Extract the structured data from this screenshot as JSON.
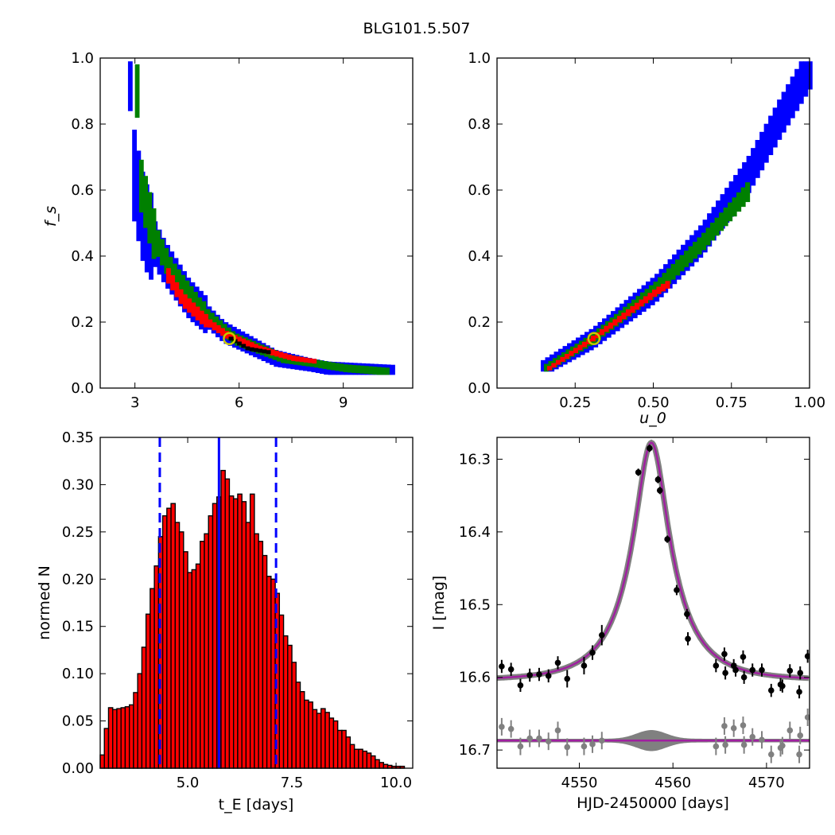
{
  "chart_data": [
    {
      "type": "scatter",
      "panel": "top-left",
      "title": "BLG101.5.507",
      "xlabel": "",
      "ylabel": "f_s",
      "xlim": [
        2,
        11
      ],
      "ylim": [
        0,
        1
      ],
      "xticks": [
        "3",
        "6",
        "9"
      ],
      "yticks": [
        "0.0",
        "0.2",
        "0.4",
        "0.6",
        "0.8",
        "1.0"
      ],
      "regions": [
        {
          "name": "outer",
          "color": "#0000ff",
          "curve": [
            [
              2.8,
              0.98
            ],
            [
              2.85,
              0.68
            ],
            [
              3.2,
              0.5
            ],
            [
              3.8,
              0.38
            ],
            [
              4.5,
              0.27
            ],
            [
              5.5,
              0.17
            ],
            [
              7.0,
              0.09
            ],
            [
              8.5,
              0.06
            ],
            [
              10.4,
              0.05
            ]
          ]
        },
        {
          "name": "middle",
          "color": "#008000",
          "curve": [
            [
              3.0,
              0.9
            ],
            [
              3.1,
              0.62
            ],
            [
              3.5,
              0.46
            ],
            [
              4.0,
              0.35
            ],
            [
              4.8,
              0.24
            ],
            [
              5.8,
              0.15
            ],
            [
              7.2,
              0.09
            ],
            [
              9.0,
              0.06
            ],
            [
              10.2,
              0.05
            ]
          ]
        },
        {
          "name": "inner",
          "color": "#ff0000",
          "curve": [
            [
              3.9,
              0.34
            ],
            [
              4.3,
              0.27
            ],
            [
              4.9,
              0.21
            ],
            [
              5.6,
              0.16
            ],
            [
              6.5,
              0.12
            ],
            [
              7.5,
              0.09
            ],
            [
              8.2,
              0.08
            ]
          ]
        },
        {
          "name": "core",
          "color": "#000000",
          "curve": [
            [
              5.7,
              0.15
            ],
            [
              6.2,
              0.12
            ],
            [
              6.8,
              0.11
            ]
          ]
        }
      ],
      "best_fit": {
        "x": 5.72,
        "y": 0.15,
        "color": "#c8c800"
      }
    },
    {
      "type": "scatter",
      "panel": "top-right",
      "xlabel": "u_0",
      "ylabel": "",
      "xlim": [
        0,
        1
      ],
      "ylim": [
        0,
        1
      ],
      "xticks": [
        "0.25",
        "0.50",
        "0.75",
        "1.00"
      ],
      "yticks": [
        "0.0",
        "0.2",
        "0.4",
        "0.6",
        "0.8",
        "1.0"
      ],
      "regions": [
        {
          "name": "outer",
          "color": "#0000ff",
          "curve": [
            [
              0.14,
              0.06
            ],
            [
              0.3,
              0.15
            ],
            [
              0.5,
              0.3
            ],
            [
              0.65,
              0.45
            ],
            [
              0.8,
              0.65
            ],
            [
              0.9,
              0.82
            ],
            [
              1.0,
              0.98
            ]
          ]
        },
        {
          "name": "middle",
          "color": "#008000",
          "curve": [
            [
              0.15,
              0.06
            ],
            [
              0.3,
              0.15
            ],
            [
              0.5,
              0.3
            ],
            [
              0.65,
              0.44
            ],
            [
              0.8,
              0.6
            ]
          ]
        },
        {
          "name": "inner",
          "color": "#ff0000",
          "curve": [
            [
              0.16,
              0.06
            ],
            [
              0.3,
              0.15
            ],
            [
              0.5,
              0.29
            ],
            [
              0.55,
              0.32
            ]
          ]
        }
      ],
      "best_fit": {
        "x": 0.31,
        "y": 0.15,
        "color": "#c8c800"
      }
    },
    {
      "type": "bar",
      "panel": "bottom-left",
      "xlabel": "t_E [days]",
      "ylabel": "normed N",
      "xlim": [
        2.9,
        10.4
      ],
      "ylim": [
        0,
        0.35
      ],
      "xticks": [
        "5.0",
        "7.5",
        "10.0"
      ],
      "yticks": [
        "0.00",
        "0.05",
        "0.10",
        "0.15",
        "0.20",
        "0.25",
        "0.30",
        "0.35"
      ],
      "bin_start": 2.9,
      "bin_width": 0.1,
      "values": [
        0.014,
        0.042,
        0.064,
        0.062,
        0.063,
        0.064,
        0.065,
        0.067,
        0.08,
        0.1,
        0.128,
        0.163,
        0.19,
        0.214,
        0.245,
        0.267,
        0.275,
        0.28,
        0.26,
        0.25,
        0.229,
        0.207,
        0.21,
        0.216,
        0.24,
        0.248,
        0.267,
        0.28,
        0.287,
        0.315,
        0.306,
        0.288,
        0.285,
        0.29,
        0.282,
        0.26,
        0.29,
        0.248,
        0.24,
        0.225,
        0.203,
        0.2,
        0.185,
        0.162,
        0.14,
        0.13,
        0.112,
        0.091,
        0.081,
        0.072,
        0.07,
        0.062,
        0.058,
        0.063,
        0.059,
        0.053,
        0.05,
        0.04,
        0.04,
        0.033,
        0.025,
        0.02,
        0.02,
        0.018,
        0.016,
        0.013,
        0.009,
        0.006,
        0.004,
        0.003,
        0.002,
        0.002,
        0.002
      ],
      "bar_color": "#ff0000",
      "vlines": [
        {
          "x": 5.75,
          "style": "solid",
          "color": "#0000ff"
        },
        {
          "x": 4.33,
          "style": "dashed",
          "color": "#0000ff"
        },
        {
          "x": 7.12,
          "style": "dashed",
          "color": "#0000ff"
        }
      ]
    },
    {
      "type": "line",
      "panel": "bottom-right",
      "xlabel": "HJD-2450000 [days]",
      "ylabel": "I [mag]",
      "xlim": [
        4541.2,
        4574.6
      ],
      "ylim": [
        16.725,
        16.27
      ],
      "y_inverted": true,
      "xticks": [
        "4550",
        "4560",
        "4570"
      ],
      "yticks": [
        "16.3",
        "16.4",
        "16.5",
        "16.6",
        "16.7"
      ],
      "model": {
        "t0": 4557.7,
        "tE": 5.7,
        "u0": 0.31,
        "fs": 0.15,
        "baseline": 16.604,
        "color": "#a020a0",
        "band_color": "#808080"
      },
      "residual_baseline": 16.687,
      "data_points": [
        {
          "x": 4541.7,
          "y": 16.585,
          "err": 0.009
        },
        {
          "x": 4542.7,
          "y": 16.589,
          "err": 0.009
        },
        {
          "x": 4543.7,
          "y": 16.611,
          "err": 0.009
        },
        {
          "x": 4544.7,
          "y": 16.597,
          "err": 0.009
        },
        {
          "x": 4545.7,
          "y": 16.596,
          "err": 0.009
        },
        {
          "x": 4546.7,
          "y": 16.598,
          "err": 0.009
        },
        {
          "x": 4547.7,
          "y": 16.58,
          "err": 0.009
        },
        {
          "x": 4548.7,
          "y": 16.602,
          "err": 0.012
        },
        {
          "x": 4550.5,
          "y": 16.584,
          "err": 0.012
        },
        {
          "x": 4551.4,
          "y": 16.566,
          "err": 0.01
        },
        {
          "x": 4552.4,
          "y": 16.542,
          "err": 0.014
        },
        {
          "x": 4556.3,
          "y": 16.318,
          "err": 0.005
        },
        {
          "x": 4557.5,
          "y": 16.285,
          "err": 0.005
        },
        {
          "x": 4558.4,
          "y": 16.328,
          "err": 0.005
        },
        {
          "x": 4558.6,
          "y": 16.343,
          "err": 0.005
        },
        {
          "x": 4559.4,
          "y": 16.41,
          "err": 0.005
        },
        {
          "x": 4560.4,
          "y": 16.48,
          "err": 0.007
        },
        {
          "x": 4561.5,
          "y": 16.513,
          "err": 0.007
        },
        {
          "x": 4561.6,
          "y": 16.547,
          "err": 0.009
        },
        {
          "x": 4564.6,
          "y": 16.584,
          "err": 0.009
        },
        {
          "x": 4565.5,
          "y": 16.568,
          "err": 0.009
        },
        {
          "x": 4565.6,
          "y": 16.594,
          "err": 0.009
        },
        {
          "x": 4566.5,
          "y": 16.584,
          "err": 0.009
        },
        {
          "x": 4566.7,
          "y": 16.59,
          "err": 0.009
        },
        {
          "x": 4567.5,
          "y": 16.572,
          "err": 0.009
        },
        {
          "x": 4567.6,
          "y": 16.6,
          "err": 0.009
        },
        {
          "x": 4568.5,
          "y": 16.59,
          "err": 0.009
        },
        {
          "x": 4569.5,
          "y": 16.59,
          "err": 0.009
        },
        {
          "x": 4570.5,
          "y": 16.618,
          "err": 0.009
        },
        {
          "x": 4571.5,
          "y": 16.61,
          "err": 0.009
        },
        {
          "x": 4571.7,
          "y": 16.612,
          "err": 0.009
        },
        {
          "x": 4572.5,
          "y": 16.591,
          "err": 0.009
        },
        {
          "x": 4573.5,
          "y": 16.62,
          "err": 0.009
        },
        {
          "x": 4573.6,
          "y": 16.594,
          "err": 0.009
        },
        {
          "x": 4574.4,
          "y": 16.571,
          "err": 0.009
        }
      ],
      "residual_points": [
        {
          "x": 4541.7,
          "y": 16.668
        },
        {
          "x": 4542.7,
          "y": 16.671
        },
        {
          "x": 4543.7,
          "y": 16.695
        },
        {
          "x": 4544.7,
          "y": 16.684
        },
        {
          "x": 4545.7,
          "y": 16.684
        },
        {
          "x": 4546.7,
          "y": 16.688
        },
        {
          "x": 4547.7,
          "y": 16.673
        },
        {
          "x": 4548.7,
          "y": 16.696
        },
        {
          "x": 4550.5,
          "y": 16.695
        },
        {
          "x": 4551.4,
          "y": 16.692
        },
        {
          "x": 4552.4,
          "y": 16.687
        },
        {
          "x": 4564.6,
          "y": 16.695
        },
        {
          "x": 4565.5,
          "y": 16.667
        },
        {
          "x": 4565.6,
          "y": 16.693
        },
        {
          "x": 4566.5,
          "y": 16.67
        },
        {
          "x": 4567.5,
          "y": 16.666
        },
        {
          "x": 4567.6,
          "y": 16.693
        },
        {
          "x": 4568.5,
          "y": 16.682
        },
        {
          "x": 4569.5,
          "y": 16.686
        },
        {
          "x": 4570.5,
          "y": 16.706
        },
        {
          "x": 4571.5,
          "y": 16.697
        },
        {
          "x": 4571.7,
          "y": 16.694
        },
        {
          "x": 4572.5,
          "y": 16.673
        },
        {
          "x": 4573.5,
          "y": 16.706
        },
        {
          "x": 4573.6,
          "y": 16.68
        },
        {
          "x": 4574.4,
          "y": 16.655
        }
      ]
    }
  ]
}
